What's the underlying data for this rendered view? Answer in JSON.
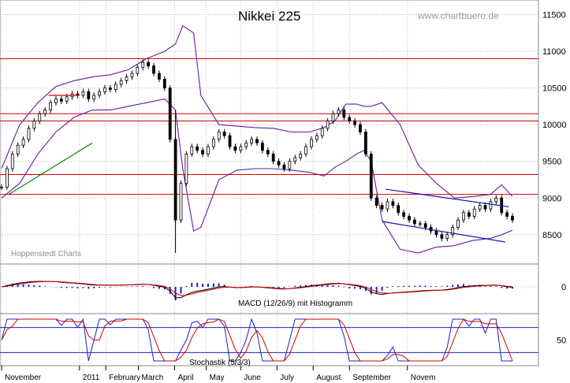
{
  "chart_data": {
    "type": "candlestick",
    "title": "Nikkei 225",
    "watermark": "www.chartbuero.de",
    "credit": "Hoppenstedt Charts",
    "y_axis": {
      "ticks": [
        11500,
        11000,
        10500,
        10000,
        9500,
        9000,
        8500
      ],
      "ylim": [
        8100,
        11700
      ]
    },
    "x_axis": {
      "months": [
        "November",
        "2011",
        "February",
        "March",
        "April",
        "May",
        "June",
        "July",
        "August",
        "September",
        "Novem"
      ]
    },
    "grid": true,
    "support_resistance_levels": [
      10900,
      10150,
      10050,
      9320,
      9050
    ],
    "trend_lines": [
      {
        "name": "",
        "points": [
          [
            0.4,
            9050
          ],
          [
            5,
            9750
          ]
        ]
      },
      {
        "name": "",
        "points": [
          [
            2.6,
            10400
          ],
          [
            4.3,
            10400
          ]
        ]
      },
      {
        "name": "",
        "points": [
          [
            21.2,
            9120
          ],
          [
            28.0,
            8880
          ]
        ]
      },
      {
        "name": "",
        "points": [
          [
            21.0,
            8680
          ],
          [
            27.8,
            8400
          ]
        ]
      }
    ],
    "price_series": {
      "name": "",
      "x": [
        0.0,
        0.3,
        0.6,
        0.9,
        1.2,
        1.5,
        1.8,
        2.1,
        2.4,
        2.7,
        3.0,
        3.3,
        3.6,
        3.9,
        4.2,
        4.5,
        4.8,
        5.1,
        5.4,
        5.7,
        6.0,
        6.3,
        6.6,
        6.9,
        7.2,
        7.5,
        7.8,
        8.1,
        8.4,
        8.7,
        9.0,
        9.3,
        9.6,
        9.9,
        10.2,
        10.5,
        10.8,
        11.1,
        11.4,
        11.7,
        12.0,
        12.3,
        12.6,
        12.9,
        13.2,
        13.5,
        13.8,
        14.1,
        14.4,
        14.7,
        15.0,
        15.3,
        15.6,
        15.9,
        16.2,
        16.5,
        16.8,
        17.1,
        17.4,
        17.7,
        18.0,
        18.3,
        18.6,
        18.9,
        19.2,
        19.5,
        19.8,
        20.1,
        20.4,
        20.7,
        21.0,
        21.3,
        21.6,
        21.9,
        22.2,
        22.5,
        22.8,
        23.1,
        23.4,
        23.7,
        24.0,
        24.3,
        24.6,
        24.9,
        25.2,
        25.5,
        25.8,
        26.1,
        26.4,
        26.7,
        27.0,
        27.3,
        27.6,
        27.9,
        28.2
      ],
      "close": [
        9150,
        9400,
        9600,
        9720,
        9800,
        9950,
        10050,
        10150,
        10200,
        10300,
        10350,
        10320,
        10380,
        10420,
        10400,
        10450,
        10350,
        10400,
        10450,
        10500,
        10480,
        10550,
        10600,
        10650,
        10700,
        10780,
        10850,
        10800,
        10700,
        10620,
        10500,
        9800,
        8700,
        9200,
        9600,
        9700,
        9650,
        9600,
        9700,
        9800,
        9900,
        9850,
        9700,
        9650,
        9700,
        9750,
        9800,
        9750,
        9650,
        9600,
        9500,
        9450,
        9400,
        9500,
        9550,
        9600,
        9700,
        9800,
        9850,
        9950,
        10050,
        10150,
        10200,
        10100,
        10050,
        10000,
        9900,
        9600,
        9000,
        8900,
        8850,
        8950,
        8900,
        8800,
        8750,
        8700,
        8650,
        8650,
        8600,
        8550,
        8500,
        8450,
        8500,
        8600,
        8700,
        8800,
        8750,
        8850,
        8900,
        8850,
        8950,
        9000,
        8800,
        8750,
        8700
      ]
    },
    "upper_band": {
      "name": "",
      "x": [
        0.0,
        1.0,
        2.0,
        3.0,
        4.0,
        5.0,
        6.0,
        7.0,
        8.0,
        9.0,
        9.6,
        10.0,
        10.6,
        11.0,
        12.0,
        13.0,
        14.0,
        15.0,
        16.0,
        17.0,
        17.8,
        18.4,
        19.0,
        19.6,
        20.0,
        20.4,
        21.0,
        22.0,
        23.0,
        24.0,
        25.0,
        26.0,
        27.0,
        27.6,
        28.2
      ],
      "values": [
        9400,
        10000,
        10300,
        10520,
        10600,
        10650,
        10680,
        10750,
        10900,
        11000,
        11100,
        11350,
        11250,
        10400,
        10000,
        9980,
        9960,
        9950,
        9900,
        9900,
        9960,
        10050,
        10280,
        10280,
        10250,
        10250,
        10300,
        10000,
        9450,
        9200,
        9000,
        9020,
        9050,
        9180,
        9020
      ]
    },
    "lower_band": {
      "name": "",
      "x": [
        0.0,
        1.0,
        2.0,
        3.0,
        4.0,
        5.0,
        6.0,
        7.0,
        8.0,
        9.0,
        9.6,
        10.0,
        10.6,
        11.0,
        12.0,
        13.0,
        14.0,
        15.0,
        16.0,
        17.0,
        17.8,
        18.4,
        19.0,
        19.6,
        20.0,
        20.4,
        21.0,
        22.0,
        23.0,
        24.0,
        25.0,
        26.0,
        27.0,
        27.6,
        28.2
      ],
      "values": [
        9000,
        9200,
        9600,
        9900,
        10100,
        10200,
        10200,
        10250,
        10300,
        10350,
        10200,
        9400,
        8550,
        8600,
        9250,
        9380,
        9400,
        9400,
        9380,
        9350,
        9300,
        9420,
        9500,
        9600,
        9650,
        9500,
        8700,
        8300,
        8250,
        8330,
        8350,
        8420,
        8450,
        8500,
        8560
      ]
    },
    "macd": {
      "label": "MACD (12/26/9) mit Histogramm"
    },
    "stochastic": {
      "label": "Stochastik (5/3/3)",
      "ticks": [
        50
      ]
    },
    "colors": {
      "price": "#000000",
      "bands": "#6a1b9a",
      "levels": "#d00000",
      "trend_green": "#008800",
      "trend_blue": "#1010b0",
      "macd_line": "#000000",
      "signal_line": "#d00000",
      "histogram": "#2020c0",
      "stoch_k": "#2020c0",
      "stoch_d": "#d00000"
    }
  }
}
